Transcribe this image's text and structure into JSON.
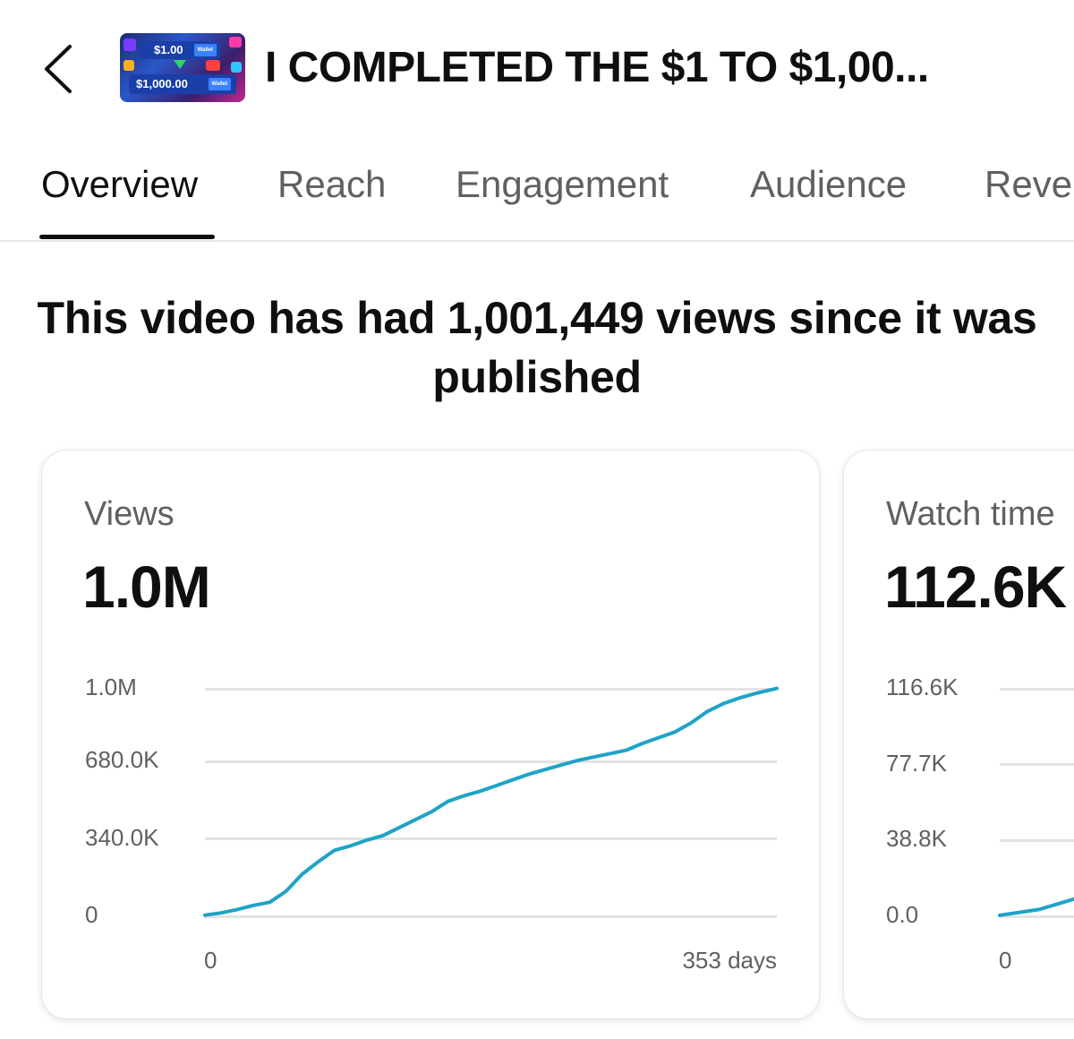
{
  "header": {
    "back_icon": "chevron-left-icon",
    "title": "I COMPLETED THE $1 TO $1,00...",
    "thumbnail": {
      "top_amount": "$1.00",
      "bottom_amount": "$1,000.00",
      "badge": "Wallet"
    }
  },
  "tabs": [
    {
      "label": "Overview",
      "active": true
    },
    {
      "label": "Reach",
      "active": false
    },
    {
      "label": "Engagement",
      "active": false
    },
    {
      "label": "Audience",
      "active": false
    },
    {
      "label": "Reve",
      "active": false
    }
  ],
  "headline": "This video has had 1,001,449 views since it was published",
  "cards": {
    "views": {
      "label": "Views",
      "value": "1.0M"
    },
    "watch": {
      "label": "Watch time",
      "value": "112.6K"
    }
  },
  "colors": {
    "line": "#1fa3c8",
    "accent_text": "#0f0f0f",
    "muted_text": "#606060"
  },
  "chart_data": [
    {
      "type": "line",
      "title": "Views",
      "y_tick_labels": [
        "1.0M",
        "680.0K",
        "340.0K",
        "0"
      ],
      "y_ticks": [
        1000000,
        680000,
        340000,
        0
      ],
      "x_tick_labels": [
        "0",
        "353 days"
      ],
      "ylim": [
        0,
        1020000
      ],
      "xlim": [
        0,
        353
      ],
      "grid": true,
      "series": [
        {
          "x": [
            0,
            10,
            20,
            30,
            40,
            50,
            60,
            70,
            80,
            90,
            100,
            110,
            120,
            130,
            140,
            150,
            160,
            170,
            180,
            190,
            200,
            210,
            220,
            230,
            240,
            250,
            260,
            270,
            280,
            290,
            300,
            310,
            320,
            330,
            340,
            353
          ],
          "y": [
            5000,
            15000,
            30000,
            48000,
            62000,
            110000,
            185000,
            240000,
            290000,
            310000,
            335000,
            355000,
            390000,
            425000,
            460000,
            505000,
            530000,
            550000,
            575000,
            600000,
            625000,
            645000,
            665000,
            685000,
            700000,
            715000,
            730000,
            760000,
            785000,
            810000,
            850000,
            900000,
            935000,
            960000,
            980000,
            1001449
          ]
        }
      ]
    },
    {
      "type": "line",
      "title": "Watch time",
      "y_tick_labels": [
        "116.6K",
        "77.7K",
        "38.8K",
        "0.0"
      ],
      "y_ticks": [
        116600,
        77700,
        38800,
        0
      ],
      "x_tick_labels": [
        "0"
      ],
      "grid": true,
      "series": [
        {
          "x": [
            0,
            20,
            40
          ],
          "y": [
            500,
            3500,
            9500
          ]
        }
      ]
    }
  ]
}
